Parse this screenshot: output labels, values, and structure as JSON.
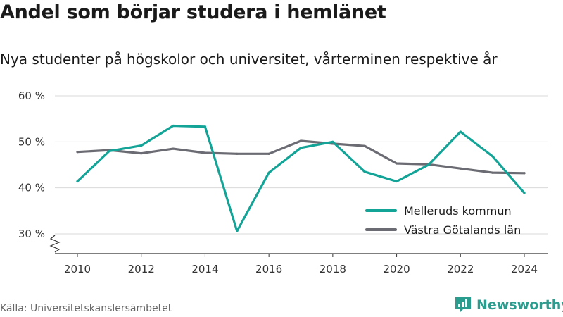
{
  "title": "Andel som börjar studera i hemlänet",
  "subtitle": "Nya studenter på högskolor och universitet, vårterminen respektive år",
  "source": "Källa: Universitetskanslersämbetet",
  "brand": {
    "name": "Newsworthy",
    "icon": "newsworthy-logo-icon",
    "color": "#2a9d8f"
  },
  "chart_data": {
    "type": "line",
    "x": [
      2010,
      2011,
      2012,
      2013,
      2014,
      2015,
      2016,
      2017,
      2018,
      2019,
      2020,
      2021,
      2022,
      2023,
      2024
    ],
    "x_ticks": [
      2010,
      2012,
      2014,
      2016,
      2018,
      2020,
      2022,
      2024
    ],
    "x_tick_labels": [
      "2010",
      "2012",
      "2014",
      "2016",
      "2018",
      "2020",
      "2022",
      "2024"
    ],
    "y_ticks": [
      30,
      40,
      50,
      60
    ],
    "y_tick_labels": [
      "30 %",
      "40 %",
      "50 %",
      "60 %"
    ],
    "ylim": [
      30,
      60
    ],
    "y_axis_break": true,
    "grid": "horizontal",
    "legend_position": "bottom-right",
    "series": [
      {
        "name": "Melleruds kommun",
        "color": "#14a397",
        "values": [
          41.4,
          48.0,
          49.2,
          53.5,
          53.3,
          30.6,
          43.3,
          48.7,
          50.0,
          43.5,
          41.4,
          45.0,
          52.2,
          46.9,
          38.9
        ]
      },
      {
        "name": "Västra Götalands län",
        "color": "#6b6b73",
        "values": [
          47.8,
          48.2,
          47.5,
          48.5,
          47.6,
          47.4,
          47.4,
          50.2,
          49.6,
          49.1,
          45.3,
          45.1,
          44.2,
          43.3,
          43.2
        ]
      }
    ]
  }
}
